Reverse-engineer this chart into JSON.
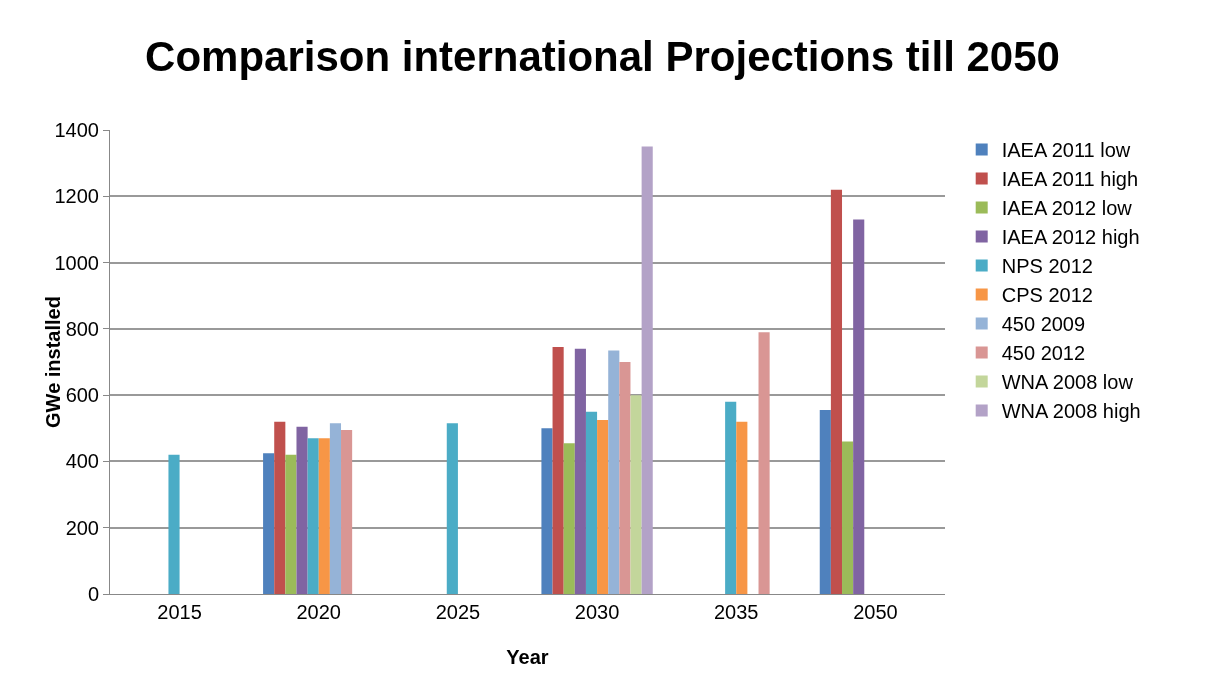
{
  "chart_data": {
    "type": "bar",
    "title": "Comparison international Projections till 2050",
    "xlabel": "Year",
    "ylabel": "GWe installed",
    "categories": [
      "2015",
      "2020",
      "2025",
      "2030",
      "2035",
      "2050"
    ],
    "series": [
      {
        "name": "IAEA 2011 low",
        "color": "#4f81bd",
        "values": [
          null,
          425,
          null,
          500,
          null,
          555
        ]
      },
      {
        "name": "IAEA 2011 high",
        "color": "#c0504d",
        "values": [
          null,
          520,
          null,
          745,
          null,
          1220
        ]
      },
      {
        "name": "IAEA 2012 low",
        "color": "#9bbb59",
        "values": [
          null,
          420,
          null,
          455,
          null,
          460
        ]
      },
      {
        "name": "IAEA 2012 high",
        "color": "#8064a2",
        "values": [
          null,
          505,
          null,
          740,
          null,
          1130
        ]
      },
      {
        "name": "NPS 2012",
        "color": "#4bacc6",
        "values": [
          420,
          470,
          515,
          550,
          580,
          null
        ]
      },
      {
        "name": "CPS 2012",
        "color": "#f79646",
        "values": [
          null,
          470,
          null,
          525,
          520,
          null
        ]
      },
      {
        "name": "450 2009",
        "color": "#95b3d7",
        "values": [
          null,
          515,
          null,
          735,
          null,
          null
        ]
      },
      {
        "name": "450 2012",
        "color": "#d99694",
        "values": [
          null,
          495,
          null,
          700,
          790,
          null
        ]
      },
      {
        "name": "WNA 2008 low",
        "color": "#c3d69b",
        "values": [
          null,
          null,
          null,
          600,
          null,
          null
        ]
      },
      {
        "name": "WNA 2008 high",
        "color": "#b3a2c7",
        "values": [
          null,
          null,
          null,
          1350,
          null,
          null
        ]
      }
    ],
    "ylim": [
      0,
      1400
    ],
    "yticks": [
      0,
      200,
      400,
      600,
      800,
      1000,
      1200,
      1400
    ],
    "grid": "y",
    "legend": "right"
  }
}
